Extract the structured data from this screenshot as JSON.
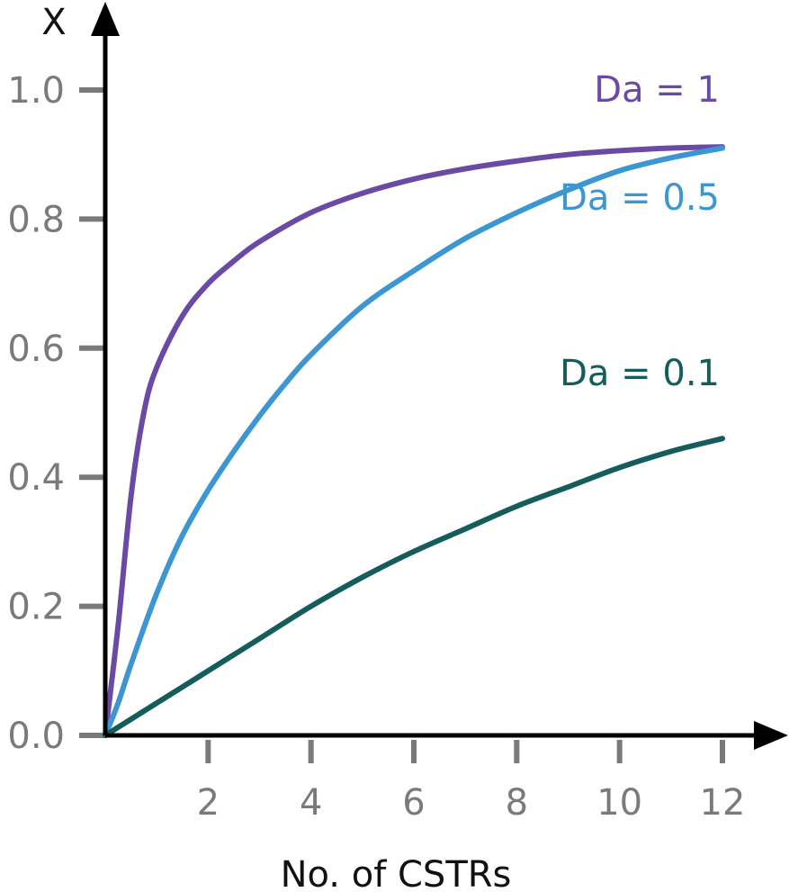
{
  "chart_data": {
    "type": "line",
    "xlabel": "No. of CSTRs",
    "ylabel": "X",
    "xlim": [
      0,
      12
    ],
    "ylim": [
      0,
      1.0
    ],
    "xticks": [
      2,
      4,
      6,
      8,
      10,
      12
    ],
    "xtick_labels": [
      "2",
      "4",
      "6",
      "8",
      "10",
      "12"
    ],
    "yticks": [
      0.0,
      0.2,
      0.4,
      0.6,
      0.8,
      1.0
    ],
    "ytick_labels": [
      "0.0",
      "0.2",
      "0.4",
      "0.6",
      "0.8",
      "1.0"
    ],
    "grid": false,
    "legend": "inline labels at right end of curves",
    "series": [
      {
        "name": "Da = 1",
        "color": "#6a4aa5",
        "x": [
          0,
          0.25,
          0.5,
          0.75,
          1,
          1.5,
          2,
          2.5,
          3,
          4,
          5,
          6,
          7,
          8,
          9,
          10,
          11,
          12
        ],
        "y": [
          0,
          0.17,
          0.37,
          0.5,
          0.57,
          0.65,
          0.7,
          0.735,
          0.765,
          0.81,
          0.84,
          0.862,
          0.878,
          0.89,
          0.9,
          0.906,
          0.91,
          0.912
        ]
      },
      {
        "name": "Da = 0.5",
        "color": "#3b96d2",
        "x": [
          0,
          0.25,
          0.5,
          1,
          1.5,
          2,
          2.5,
          3,
          3.5,
          4,
          5,
          6,
          7,
          8,
          9,
          10,
          11,
          12
        ],
        "y": [
          0,
          0.05,
          0.11,
          0.22,
          0.31,
          0.38,
          0.44,
          0.495,
          0.545,
          0.59,
          0.665,
          0.72,
          0.77,
          0.81,
          0.845,
          0.875,
          0.895,
          0.91
        ]
      },
      {
        "name": "Da = 0.1",
        "color": "#155c5c",
        "x": [
          0,
          1,
          2,
          3,
          4,
          5,
          6,
          7,
          8,
          9,
          10,
          11,
          12
        ],
        "y": [
          0,
          0.05,
          0.1,
          0.15,
          0.2,
          0.245,
          0.285,
          0.32,
          0.355,
          0.385,
          0.415,
          0.44,
          0.46
        ]
      }
    ]
  },
  "colors": {
    "axis": "#000000",
    "tick_mark": "#7a7a7a",
    "tick_label": "#7a7a7a"
  }
}
